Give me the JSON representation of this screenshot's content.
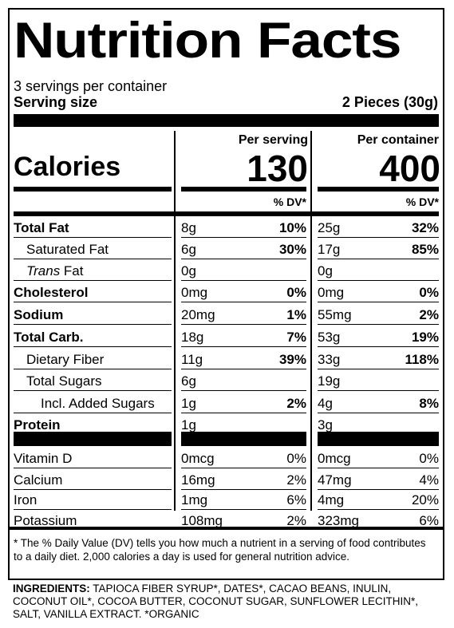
{
  "title": "Nutrition Facts",
  "servings_per_container": "3 servings per container",
  "serving_size_label": "Serving size",
  "serving_size_value": "2 Pieces (30g)",
  "header": {
    "per_serving": "Per serving",
    "per_container": "Per container",
    "calories_label": "Calories",
    "calories_serving": "130",
    "calories_container": "400",
    "dv_label": "% DV*"
  },
  "nutrients": [
    {
      "name": "Total Fat",
      "serving_amount": "8g",
      "serving_dv": "10%",
      "container_amount": "25g",
      "container_dv": "32%"
    },
    {
      "name": "Saturated Fat",
      "serving_amount": "6g",
      "serving_dv": "30%",
      "container_amount": "17g",
      "container_dv": "85%"
    },
    {
      "name_italic": "Trans",
      "name_rest": " Fat",
      "serving_amount": "0g",
      "serving_dv": "",
      "container_amount": "0g",
      "container_dv": ""
    },
    {
      "name": "Cholesterol",
      "serving_amount": "0mg",
      "serving_dv": "0%",
      "container_amount": "0mg",
      "container_dv": "0%"
    },
    {
      "name": "Sodium",
      "serving_amount": "20mg",
      "serving_dv": "1%",
      "container_amount": "55mg",
      "container_dv": "2%"
    },
    {
      "name": "Total Carb.",
      "serving_amount": "18g",
      "serving_dv": "7%",
      "container_amount": "53g",
      "container_dv": "19%"
    },
    {
      "name": "Dietary Fiber",
      "serving_amount": "11g",
      "serving_dv": "39%",
      "container_amount": "33g",
      "container_dv": "118%"
    },
    {
      "name": "Total Sugars",
      "serving_amount": "6g",
      "serving_dv": "",
      "container_amount": "19g",
      "container_dv": ""
    },
    {
      "name": "Incl. Added Sugars",
      "serving_amount": "1g",
      "serving_dv": "2%",
      "container_amount": "4g",
      "container_dv": "8%"
    },
    {
      "name": "Protein",
      "serving_amount": "1g",
      "serving_dv": "",
      "container_amount": "3g",
      "container_dv": ""
    }
  ],
  "micronutrients": [
    {
      "name": "Vitamin D",
      "serving_amount": "0mcg",
      "serving_dv": "0%",
      "container_amount": "0mcg",
      "container_dv": "0%"
    },
    {
      "name": "Calcium",
      "serving_amount": "16mg",
      "serving_dv": "2%",
      "container_amount": "47mg",
      "container_dv": "4%"
    },
    {
      "name": "Iron",
      "serving_amount": "1mg",
      "serving_dv": "6%",
      "container_amount": "4mg",
      "container_dv": "20%"
    },
    {
      "name": "Potassium",
      "serving_amount": "108mg",
      "serving_dv": "2%",
      "container_amount": "323mg",
      "container_dv": "6%"
    }
  ],
  "footnote": "* The % Daily Value (DV) tells you how much a nutrient in a serving of food contributes to a daily diet. 2,000 calories a day is used for general nutrition advice.",
  "ingredients_label": "INGREDIENTS:",
  "ingredients_text": " TAPIOCA FIBER SYRUP*, DATES*, CACAO BEANS, INULIN, COCONUT OIL*, COCOA BUTTER, COCONUT SUGAR, SUNFLOWER LECITHIN*, SALT, VANILLA EXTRACT. *ORGANIC"
}
